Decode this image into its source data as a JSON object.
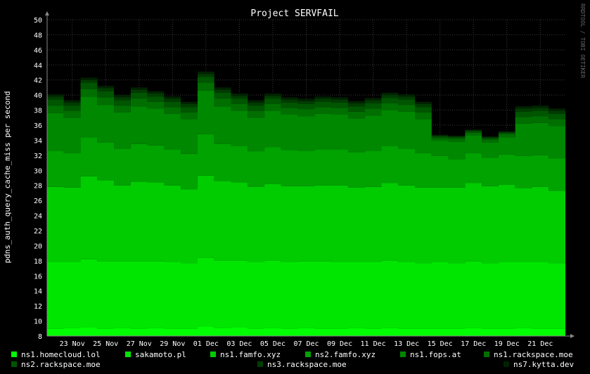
{
  "chart_data": {
    "type": "area",
    "title": "Project SERVFAIL",
    "xlabel": "",
    "ylabel": "pdns_auth_query_cache_miss per second",
    "watermark": "RRDTOOL / TOBI OETIKER",
    "ylim": [
      8,
      50
    ],
    "yticks": [
      8,
      10,
      12,
      14,
      16,
      18,
      20,
      22,
      24,
      26,
      28,
      30,
      32,
      34,
      36,
      38,
      40,
      42,
      44,
      46,
      48,
      50
    ],
    "x": [
      "22 Nov",
      "23 Nov",
      "24 Nov",
      "25 Nov",
      "26 Nov",
      "27 Nov",
      "28 Nov",
      "29 Nov",
      "30 Nov",
      "01 Dec",
      "02 Dec",
      "03 Dec",
      "04 Dec",
      "05 Dec",
      "06 Dec",
      "07 Dec",
      "08 Dec",
      "09 Dec",
      "10 Dec",
      "11 Dec",
      "12 Dec",
      "13 Dec",
      "14 Dec",
      "15 Dec",
      "16 Dec",
      "17 Dec",
      "18 Dec",
      "19 Dec",
      "20 Dec",
      "21 Dec",
      "22 Dec"
    ],
    "xticks": [
      "23 Nov",
      "25 Nov",
      "27 Nov",
      "29 Nov",
      "01 Dec",
      "03 Dec",
      "05 Dec",
      "07 Dec",
      "09 Dec",
      "11 Dec",
      "13 Dec",
      "15 Dec",
      "17 Dec",
      "19 Dec",
      "21 Dec"
    ],
    "grid": true,
    "legend": "bottom",
    "series": [
      {
        "name": "ns1.homecloud.lol",
        "color": "#00ff00",
        "values": [
          9.0,
          9.1,
          9.2,
          9.0,
          9.1,
          9.0,
          9.1,
          9.0,
          9.0,
          9.3,
          9.1,
          9.2,
          9.0,
          9.1,
          9.0,
          9.1,
          9.0,
          9.0,
          9.1,
          9.0,
          9.1,
          9.0,
          9.0,
          9.0,
          9.0,
          9.1,
          9.0,
          9.0,
          9.1,
          9.0,
          9.0
        ]
      },
      {
        "name": "sakamoto.pl",
        "color": "#00e600",
        "values": [
          8.8,
          8.7,
          9.0,
          8.9,
          8.8,
          8.9,
          8.8,
          8.8,
          8.7,
          9.1,
          8.9,
          8.8,
          8.8,
          8.9,
          8.8,
          8.8,
          8.9,
          8.8,
          8.7,
          8.8,
          8.9,
          8.8,
          8.7,
          8.8,
          8.7,
          8.8,
          8.7,
          8.8,
          8.7,
          8.8,
          8.7
        ]
      },
      {
        "name": "ns1.famfo.xyz",
        "color": "#00cc00",
        "values": [
          10.0,
          9.9,
          11.0,
          10.8,
          10.1,
          10.6,
          10.5,
          10.2,
          9.8,
          10.9,
          10.6,
          10.4,
          10.0,
          10.2,
          10.1,
          10.0,
          10.1,
          10.2,
          9.9,
          10.0,
          10.3,
          10.2,
          10.0,
          9.9,
          10.0,
          10.4,
          10.2,
          10.3,
          9.8,
          10.0,
          9.6
        ]
      },
      {
        "name": "ns2.famfo.xyz",
        "color": "#00a300",
        "values": [
          4.8,
          4.6,
          5.2,
          5.0,
          4.9,
          5.0,
          4.9,
          4.8,
          4.7,
          5.5,
          4.9,
          4.8,
          4.7,
          4.9,
          4.8,
          4.7,
          4.8,
          4.8,
          4.7,
          4.8,
          4.9,
          4.9,
          4.6,
          4.2,
          3.8,
          4.0,
          3.8,
          4.0,
          4.3,
          4.2,
          4.3
        ]
      },
      {
        "name": "ns1.fops.at",
        "color": "#008800",
        "values": [
          5.0,
          4.7,
          5.4,
          5.0,
          4.8,
          5.0,
          4.9,
          4.7,
          4.6,
          5.8,
          5.0,
          4.7,
          4.5,
          4.8,
          4.7,
          4.6,
          4.7,
          4.6,
          4.5,
          4.7,
          4.8,
          4.9,
          4.5,
          2.0,
          2.3,
          2.3,
          2.0,
          2.3,
          4.3,
          4.3,
          4.3
        ]
      },
      {
        "name": "ns1.rackspace.moe",
        "color": "#006f00",
        "values": [
          1.0,
          0.9,
          1.0,
          1.0,
          0.9,
          1.0,
          0.9,
          0.9,
          0.9,
          1.0,
          1.0,
          0.9,
          0.9,
          0.9,
          0.9,
          0.9,
          0.9,
          0.9,
          0.9,
          0.9,
          0.9,
          0.9,
          0.9,
          0.4,
          0.4,
          0.4,
          0.4,
          0.4,
          0.9,
          0.9,
          0.9
        ]
      },
      {
        "name": "ns2.rackspace.moe",
        "color": "#005500",
        "values": [
          0.8,
          0.7,
          0.8,
          0.8,
          0.7,
          0.8,
          0.7,
          0.7,
          0.7,
          0.8,
          0.8,
          0.7,
          0.7,
          0.7,
          0.7,
          0.7,
          0.7,
          0.7,
          0.7,
          0.7,
          0.7,
          0.7,
          0.7,
          0.2,
          0.2,
          0.2,
          0.2,
          0.2,
          0.7,
          0.7,
          0.7
        ]
      },
      {
        "name": "ns3.rackspace.moe",
        "color": "#003c00",
        "values": [
          0.4,
          0.4,
          0.4,
          0.4,
          0.4,
          0.4,
          0.4,
          0.4,
          0.4,
          0.4,
          0.4,
          0.4,
          0.4,
          0.4,
          0.4,
          0.4,
          0.4,
          0.4,
          0.4,
          0.4,
          0.4,
          0.4,
          0.4,
          0.1,
          0.1,
          0.1,
          0.1,
          0.1,
          0.4,
          0.4,
          0.4
        ]
      },
      {
        "name": "ns7.kytta.dev",
        "color": "#002200",
        "values": [
          0.3,
          0.3,
          0.3,
          0.3,
          0.3,
          0.3,
          0.3,
          0.3,
          0.3,
          0.3,
          0.3,
          0.3,
          0.3,
          0.3,
          0.3,
          0.3,
          0.3,
          0.3,
          0.3,
          0.3,
          0.3,
          0.3,
          0.3,
          0.1,
          0.1,
          0.1,
          0.1,
          0.1,
          0.3,
          0.3,
          0.3
        ]
      }
    ]
  }
}
